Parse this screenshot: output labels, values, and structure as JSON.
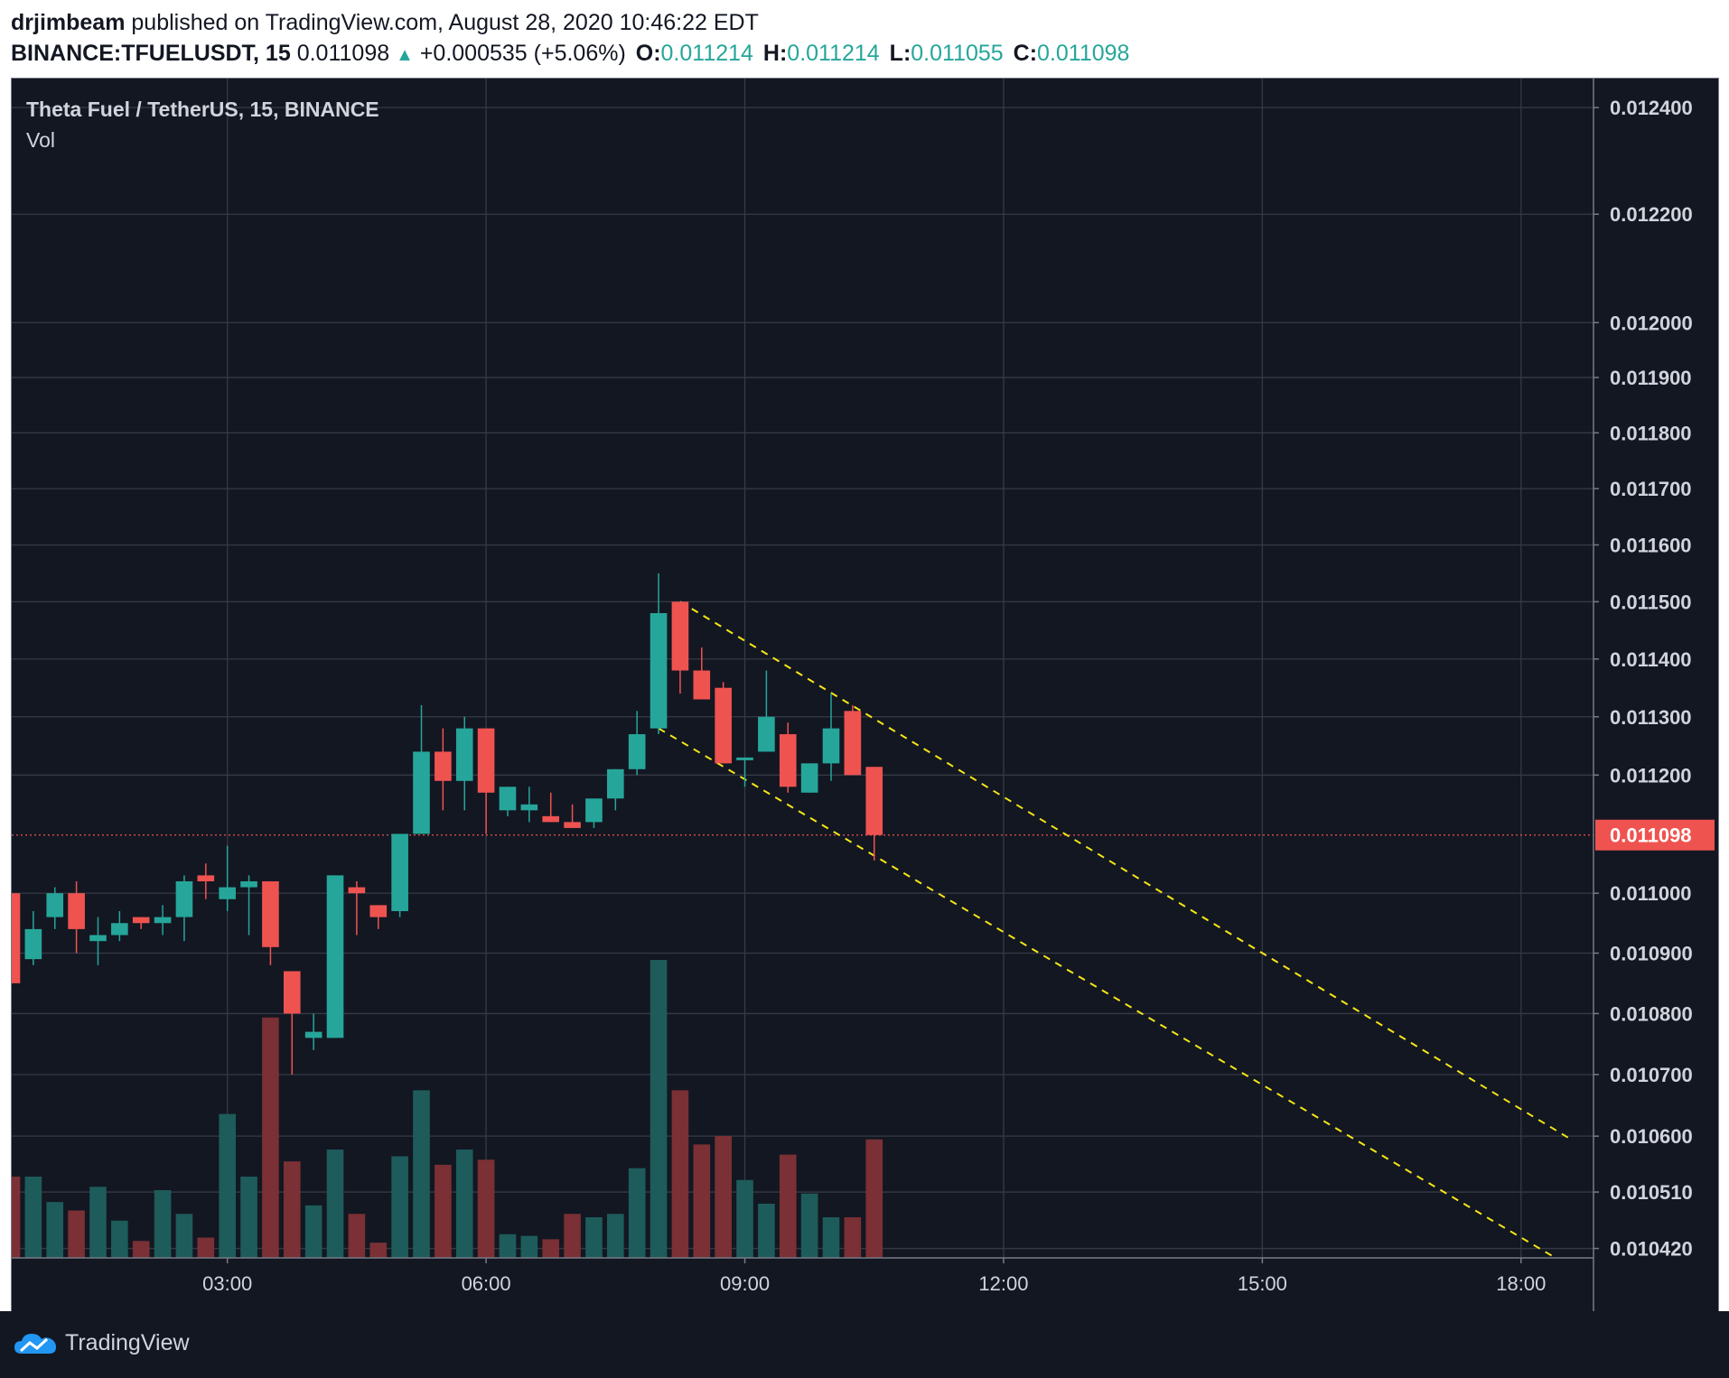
{
  "header": {
    "author": "drjimbeam",
    "published_text": "published on TradingView.com, August 28, 2020 10:46:22 EDT",
    "symbol": "BINANCE:TFUELUSDT, 15",
    "last": "0.011098",
    "change": "+0.000535 (+5.06%)",
    "o_label": "O:",
    "o_value": "0.011214",
    "h_label": "H:",
    "h_value": "0.011214",
    "l_label": "L:",
    "l_value": "0.011055",
    "c_label": "C:",
    "c_value": "0.011098"
  },
  "legend": {
    "title": "Theta Fuel / TetherUS, 15, BINANCE",
    "indicator": "Vol"
  },
  "footer": {
    "brand": "TradingView"
  },
  "colors": {
    "background": "#131722",
    "grid": "#363a45",
    "up": "#26a69a",
    "down": "#ef5350",
    "vol_up": "#1d5c5a",
    "vol_down": "#7a3034",
    "trendline": "#f5e616",
    "price_line": "#ef5350",
    "text": "#d1d4dc"
  },
  "chart_data": {
    "type": "candlestick",
    "title": "Theta Fuel / TetherUS, 15, BINANCE",
    "interval_minutes": 15,
    "y_axis": {
      "scale": "log",
      "ticks": [
        "0.012400",
        "0.012200",
        "0.012000",
        "0.011900",
        "0.011800",
        "0.011700",
        "0.011600",
        "0.011500",
        "0.011400",
        "0.011300",
        "0.011200",
        "0.011000",
        "0.010900",
        "0.010800",
        "0.010700",
        "0.010600",
        "0.010510",
        "0.010420"
      ],
      "tick_values": [
        0.0124,
        0.0122,
        0.012,
        0.0119,
        0.0118,
        0.0117,
        0.0116,
        0.0115,
        0.0114,
        0.0113,
        0.0112,
        0.011,
        0.0109,
        0.0108,
        0.0107,
        0.0106,
        0.01051,
        0.01042
      ],
      "range": [
        0.010405,
        0.012455
      ]
    },
    "x_axis": {
      "ticks": [
        "03:00",
        "06:00",
        "09:00",
        "12:00",
        "15:00",
        "18:00"
      ],
      "tick_hours": [
        3,
        6,
        9,
        12,
        15,
        18
      ],
      "range_hours": [
        0.5,
        18.84
      ]
    },
    "last_price": {
      "value": 0.011098,
      "label": "0.011098"
    },
    "candles": [
      {
        "t": 0.5,
        "o": 0.011,
        "h": 0.011,
        "l": 0.01085,
        "c": 0.01085
      },
      {
        "t": 0.75,
        "o": 0.01089,
        "h": 0.01097,
        "l": 0.01088,
        "c": 0.01094
      },
      {
        "t": 1.0,
        "o": 0.01096,
        "h": 0.01101,
        "l": 0.01094,
        "c": 0.011
      },
      {
        "t": 1.25,
        "o": 0.011,
        "h": 0.01102,
        "l": 0.0109,
        "c": 0.01094
      },
      {
        "t": 1.5,
        "o": 0.01092,
        "h": 0.01096,
        "l": 0.01088,
        "c": 0.01093
      },
      {
        "t": 1.75,
        "o": 0.01093,
        "h": 0.01097,
        "l": 0.01092,
        "c": 0.01095
      },
      {
        "t": 2.0,
        "o": 0.01096,
        "h": 0.01096,
        "l": 0.01094,
        "c": 0.01095
      },
      {
        "t": 2.25,
        "o": 0.01095,
        "h": 0.01098,
        "l": 0.01093,
        "c": 0.01096
      },
      {
        "t": 2.5,
        "o": 0.01096,
        "h": 0.01103,
        "l": 0.01092,
        "c": 0.01102
      },
      {
        "t": 2.75,
        "o": 0.01103,
        "h": 0.01105,
        "l": 0.01099,
        "c": 0.01102
      },
      {
        "t": 3.0,
        "o": 0.01099,
        "h": 0.01108,
        "l": 0.01097,
        "c": 0.01101
      },
      {
        "t": 3.25,
        "o": 0.01101,
        "h": 0.01103,
        "l": 0.01093,
        "c": 0.01102
      },
      {
        "t": 3.5,
        "o": 0.01102,
        "h": 0.01102,
        "l": 0.01088,
        "c": 0.01091
      },
      {
        "t": 3.75,
        "o": 0.01087,
        "h": 0.01087,
        "l": 0.0107,
        "c": 0.0108
      },
      {
        "t": 4.0,
        "o": 0.01076,
        "h": 0.0108,
        "l": 0.01074,
        "c": 0.01077
      },
      {
        "t": 4.25,
        "o": 0.01076,
        "h": 0.01103,
        "l": 0.01076,
        "c": 0.01103
      },
      {
        "t": 4.5,
        "o": 0.01101,
        "h": 0.01102,
        "l": 0.01093,
        "c": 0.011
      },
      {
        "t": 4.75,
        "o": 0.01098,
        "h": 0.01098,
        "l": 0.01094,
        "c": 0.01096
      },
      {
        "t": 5.0,
        "o": 0.01097,
        "h": 0.0111,
        "l": 0.01096,
        "c": 0.0111
      },
      {
        "t": 5.25,
        "o": 0.0111,
        "h": 0.01132,
        "l": 0.0111,
        "c": 0.01124
      },
      {
        "t": 5.5,
        "o": 0.01124,
        "h": 0.01128,
        "l": 0.01114,
        "c": 0.01119
      },
      {
        "t": 5.75,
        "o": 0.01119,
        "h": 0.0113,
        "l": 0.01114,
        "c": 0.01128
      },
      {
        "t": 6.0,
        "o": 0.01128,
        "h": 0.01128,
        "l": 0.0111,
        "c": 0.01117
      },
      {
        "t": 6.25,
        "o": 0.01114,
        "h": 0.01118,
        "l": 0.01113,
        "c": 0.01118
      },
      {
        "t": 6.5,
        "o": 0.01114,
        "h": 0.01118,
        "l": 0.01112,
        "c": 0.01115
      },
      {
        "t": 6.75,
        "o": 0.01113,
        "h": 0.01117,
        "l": 0.01112,
        "c": 0.01112
      },
      {
        "t": 7.0,
        "o": 0.01112,
        "h": 0.01115,
        "l": 0.01111,
        "c": 0.01111
      },
      {
        "t": 7.25,
        "o": 0.01112,
        "h": 0.01116,
        "l": 0.01111,
        "c": 0.01116
      },
      {
        "t": 7.5,
        "o": 0.01116,
        "h": 0.01121,
        "l": 0.01114,
        "c": 0.01121
      },
      {
        "t": 7.75,
        "o": 0.01121,
        "h": 0.01131,
        "l": 0.0112,
        "c": 0.01127
      },
      {
        "t": 8.0,
        "o": 0.01128,
        "h": 0.01155,
        "l": 0.01127,
        "c": 0.01148
      },
      {
        "t": 8.25,
        "o": 0.0115,
        "h": 0.0115,
        "l": 0.01134,
        "c": 0.01138
      },
      {
        "t": 8.5,
        "o": 0.01138,
        "h": 0.01142,
        "l": 0.01133,
        "c": 0.01133
      },
      {
        "t": 8.75,
        "o": 0.01135,
        "h": 0.01136,
        "l": 0.01122,
        "c": 0.01122
      },
      {
        "t": 9.0,
        "o": 0.01123,
        "h": 0.01123,
        "l": 0.01118,
        "c": 0.01123
      },
      {
        "t": 9.25,
        "o": 0.01124,
        "h": 0.01138,
        "l": 0.01124,
        "c": 0.0113
      },
      {
        "t": 9.5,
        "o": 0.01127,
        "h": 0.01129,
        "l": 0.01117,
        "c": 0.01118
      },
      {
        "t": 9.75,
        "o": 0.01117,
        "h": 0.01122,
        "l": 0.01117,
        "c": 0.01122
      },
      {
        "t": 10.0,
        "o": 0.01122,
        "h": 0.01134,
        "l": 0.01119,
        "c": 0.01128
      },
      {
        "t": 10.25,
        "o": 0.01131,
        "h": 0.01132,
        "l": 0.0112,
        "c": 0.0112
      },
      {
        "t": 10.5,
        "o": 0.011214,
        "h": 0.011214,
        "l": 0.011055,
        "c": 0.011098
      }
    ],
    "volume": [
      {
        "t": 0.5,
        "v": 48,
        "up": false
      },
      {
        "t": 0.75,
        "v": 48,
        "up": true
      },
      {
        "t": 1.0,
        "v": 33,
        "up": true
      },
      {
        "t": 1.25,
        "v": 28,
        "up": false
      },
      {
        "t": 1.5,
        "v": 42,
        "up": true
      },
      {
        "t": 1.75,
        "v": 22,
        "up": true
      },
      {
        "t": 2.0,
        "v": 10,
        "up": false
      },
      {
        "t": 2.25,
        "v": 40,
        "up": true
      },
      {
        "t": 2.5,
        "v": 26,
        "up": true
      },
      {
        "t": 2.75,
        "v": 12,
        "up": false
      },
      {
        "t": 3.0,
        "v": 85,
        "up": true
      },
      {
        "t": 3.25,
        "v": 48,
        "up": true
      },
      {
        "t": 3.5,
        "v": 142,
        "up": false
      },
      {
        "t": 3.75,
        "v": 57,
        "up": false
      },
      {
        "t": 4.0,
        "v": 31,
        "up": true
      },
      {
        "t": 4.25,
        "v": 64,
        "up": true
      },
      {
        "t": 4.5,
        "v": 26,
        "up": false
      },
      {
        "t": 4.75,
        "v": 9,
        "up": false
      },
      {
        "t": 5.0,
        "v": 60,
        "up": true
      },
      {
        "t": 5.25,
        "v": 99,
        "up": true
      },
      {
        "t": 5.5,
        "v": 55,
        "up": false
      },
      {
        "t": 5.75,
        "v": 64,
        "up": true
      },
      {
        "t": 6.0,
        "v": 58,
        "up": false
      },
      {
        "t": 6.25,
        "v": 14,
        "up": true
      },
      {
        "t": 6.5,
        "v": 13,
        "up": true
      },
      {
        "t": 6.75,
        "v": 11,
        "up": false
      },
      {
        "t": 7.0,
        "v": 26,
        "up": false
      },
      {
        "t": 7.25,
        "v": 24,
        "up": true
      },
      {
        "t": 7.5,
        "v": 26,
        "up": true
      },
      {
        "t": 7.75,
        "v": 53,
        "up": true
      },
      {
        "t": 8.0,
        "v": 176,
        "up": true
      },
      {
        "t": 8.25,
        "v": 99,
        "up": false
      },
      {
        "t": 8.5,
        "v": 67,
        "up": false
      },
      {
        "t": 8.75,
        "v": 72,
        "up": false
      },
      {
        "t": 9.0,
        "v": 46,
        "up": true
      },
      {
        "t": 9.25,
        "v": 32,
        "up": true
      },
      {
        "t": 9.5,
        "v": 61,
        "up": false
      },
      {
        "t": 9.75,
        "v": 38,
        "up": true
      },
      {
        "t": 10.0,
        "v": 24,
        "up": true
      },
      {
        "t": 10.25,
        "v": 24,
        "up": false
      },
      {
        "t": 10.5,
        "v": 70,
        "up": false
      }
    ],
    "trendlines": [
      {
        "t1": 8.25,
        "p1": 0.0115,
        "t2": 18.6,
        "p2": 0.010593
      },
      {
        "t1": 8.0,
        "p1": 0.01128,
        "t2": 18.4,
        "p2": 0.010405
      }
    ]
  }
}
